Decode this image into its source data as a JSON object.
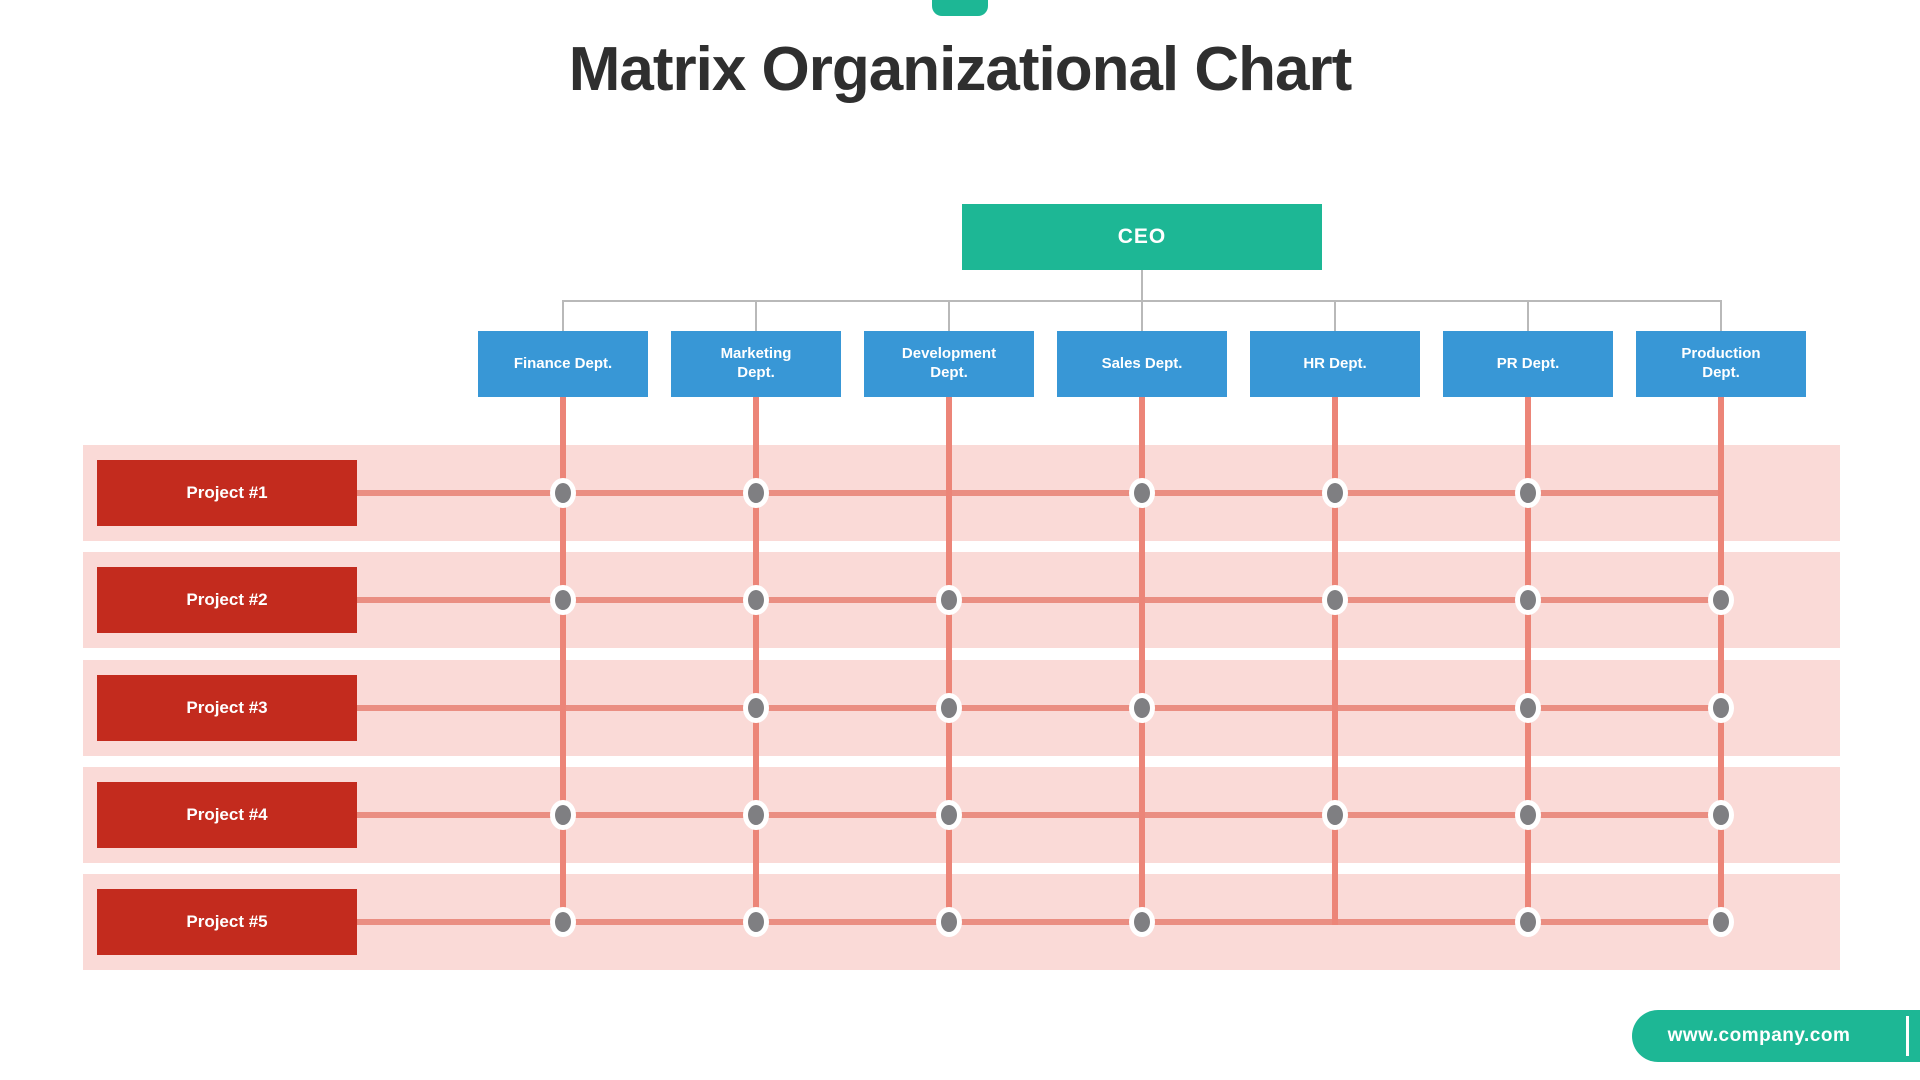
{
  "page": {
    "title": "Matrix Organizational Chart",
    "website_label": "www.company.com"
  },
  "colors": {
    "teal": "#1db795",
    "blue": "#3897d6",
    "red": "#c32b1e",
    "pink_band": "#fadad7",
    "salmon_line": "#ec8578",
    "dot_gray": "#7f7f82",
    "connector_gray": "#b9b9b9",
    "title_text": "#2f2f2f"
  },
  "org": {
    "ceo_label": "CEO",
    "departments": [
      {
        "label": "Finance Dept."
      },
      {
        "label": "Marketing\nDept."
      },
      {
        "label": "Development\nDept."
      },
      {
        "label": "Sales Dept."
      },
      {
        "label": "HR Dept."
      },
      {
        "label": "PR Dept."
      },
      {
        "label": "Production\nDept."
      }
    ],
    "projects": [
      {
        "label": "Project #1",
        "assignments": [
          1,
          1,
          0,
          1,
          1,
          1,
          0
        ]
      },
      {
        "label": "Project #2",
        "assignments": [
          1,
          1,
          1,
          0,
          1,
          1,
          1
        ]
      },
      {
        "label": "Project #3",
        "assignments": [
          0,
          1,
          1,
          1,
          0,
          1,
          1
        ]
      },
      {
        "label": "Project #4",
        "assignments": [
          1,
          1,
          1,
          0,
          1,
          1,
          1
        ]
      },
      {
        "label": "Project #5",
        "assignments": [
          1,
          1,
          1,
          1,
          0,
          1,
          1
        ]
      }
    ]
  }
}
